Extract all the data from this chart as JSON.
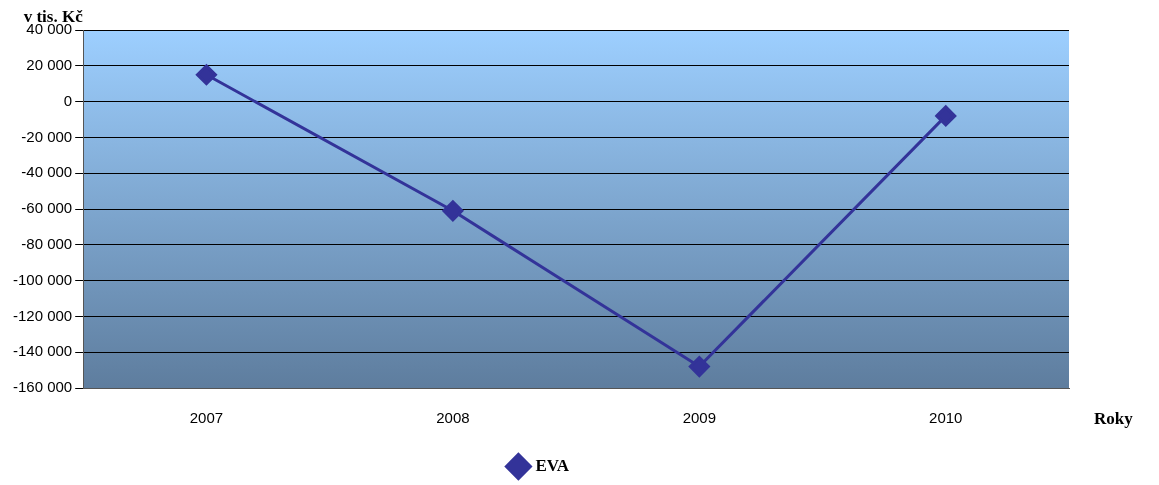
{
  "chart_data": {
    "type": "line",
    "ylabel": "v tis. Kč",
    "xlabel": "Roky",
    "categories": [
      "2007",
      "2008",
      "2009",
      "2010"
    ],
    "series": [
      {
        "name": "EVA",
        "color": "#333399",
        "values": [
          15000,
          -61000,
          -148000,
          -8000
        ]
      }
    ],
    "ylim": [
      -160000,
      40000
    ],
    "yticks": [
      {
        "value": -160000,
        "label": "-160 000"
      },
      {
        "value": -140000,
        "label": "-140 000"
      },
      {
        "value": -120000,
        "label": "-120 000"
      },
      {
        "value": -100000,
        "label": "-100 000"
      },
      {
        "value": -80000,
        "label": "-80 000"
      },
      {
        "value": -60000,
        "label": "-60 000"
      },
      {
        "value": -40000,
        "label": "-40 000"
      },
      {
        "value": -20000,
        "label": "-20 000"
      },
      {
        "value": 0,
        "label": "0"
      },
      {
        "value": 20000,
        "label": "20 000"
      },
      {
        "value": 40000,
        "label": "40 000"
      }
    ],
    "grid": "y",
    "legend": "bottom",
    "marker": "diamond",
    "line_style": "solid"
  }
}
